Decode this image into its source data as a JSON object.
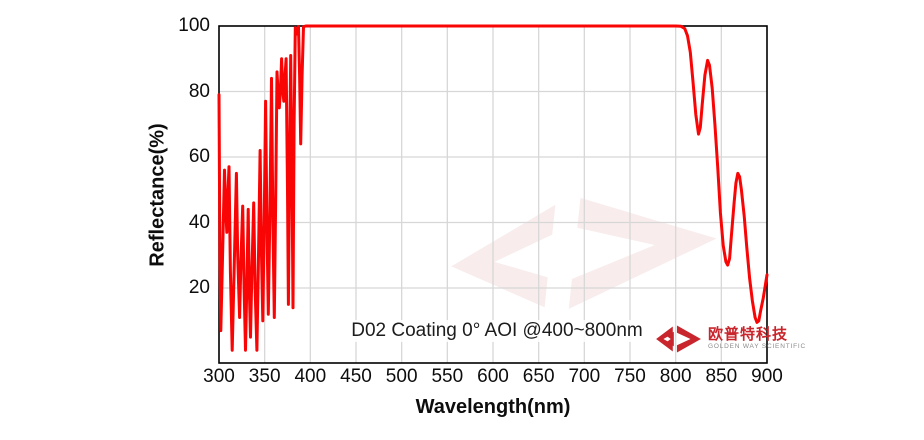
{
  "annotation": {
    "text": "D02 Coating  0°  AOI @400~800nm"
  },
  "logo": {
    "company_cn": "欧普特科技",
    "company_en": "GOLDEN WAY SCIENTIFIC",
    "brand_red": "#c9252c"
  },
  "colors": {
    "curve": "#f90505",
    "grid": "#d7d7d7",
    "border": "#000000",
    "text": "#0d0d0d",
    "watermark": "#f3dddd"
  },
  "chart_data": {
    "type": "line",
    "title": "",
    "xlabel": "Wavelength(nm)",
    "ylabel": "Reflectance(%)",
    "xlim": [
      300,
      900
    ],
    "ylim": [
      -2.9,
      100
    ],
    "xticks": [
      300,
      350,
      400,
      450,
      500,
      550,
      600,
      650,
      700,
      750,
      800,
      850,
      900
    ],
    "yticks": [
      20,
      40,
      60,
      80,
      100
    ],
    "grid": true,
    "legend_position": "none",
    "annotations": [
      "D02 Coating  0°  AOI @400~800nm"
    ],
    "series": [
      {
        "name": "Reflectance",
        "color": "#f90505",
        "points": [
          [
            300,
            79
          ],
          [
            301,
            30
          ],
          [
            302,
            7
          ],
          [
            303.5,
            25
          ],
          [
            306,
            56
          ],
          [
            307,
            47
          ],
          [
            308.5,
            37
          ],
          [
            310,
            50
          ],
          [
            311,
            57
          ],
          [
            312.5,
            25
          ],
          [
            314.5,
            1
          ],
          [
            316.5,
            25
          ],
          [
            319,
            55
          ],
          [
            320.5,
            30
          ],
          [
            322.5,
            11
          ],
          [
            324,
            28
          ],
          [
            326,
            45
          ],
          [
            327.5,
            20
          ],
          [
            329,
            1
          ],
          [
            330.5,
            22
          ],
          [
            332,
            44
          ],
          [
            333.2,
            20
          ],
          [
            334.5,
            5
          ],
          [
            336,
            25
          ],
          [
            338,
            46
          ],
          [
            339.5,
            20
          ],
          [
            341.5,
            1
          ],
          [
            343.2,
            30
          ],
          [
            345,
            62
          ],
          [
            346.5,
            30
          ],
          [
            348,
            10
          ],
          [
            349.5,
            40
          ],
          [
            351,
            77
          ],
          [
            352.5,
            40
          ],
          [
            354,
            12
          ],
          [
            355.8,
            45
          ],
          [
            357.5,
            84
          ],
          [
            359,
            40
          ],
          [
            360.5,
            11
          ],
          [
            362,
            45
          ],
          [
            363.5,
            86
          ],
          [
            365,
            78
          ],
          [
            366,
            75
          ],
          [
            367.2,
            80
          ],
          [
            368.5,
            90
          ],
          [
            370,
            80
          ],
          [
            371,
            77
          ],
          [
            372.2,
            84
          ],
          [
            373.5,
            90
          ],
          [
            375,
            50
          ],
          [
            376,
            15
          ],
          [
            377.2,
            55
          ],
          [
            378.5,
            91
          ],
          [
            380,
            50
          ],
          [
            381,
            14
          ],
          [
            382.2,
            70
          ],
          [
            383.5,
            99.5
          ],
          [
            385,
            97.5
          ],
          [
            387,
            99.8
          ],
          [
            388.2,
            85
          ],
          [
            389.5,
            64
          ],
          [
            391,
            85
          ],
          [
            392.5,
            99.8
          ],
          [
            395,
            100
          ],
          [
            400,
            100
          ],
          [
            450,
            100
          ],
          [
            500,
            100
          ],
          [
            550,
            100
          ],
          [
            600,
            100
          ],
          [
            650,
            100
          ],
          [
            700,
            100
          ],
          [
            750,
            100
          ],
          [
            800,
            100
          ],
          [
            806,
            99.9
          ],
          [
            810,
            99.2
          ],
          [
            813,
            97
          ],
          [
            816,
            92
          ],
          [
            819,
            83
          ],
          [
            822,
            73
          ],
          [
            825,
            67
          ],
          [
            827,
            69
          ],
          [
            829,
            76
          ],
          [
            832,
            85
          ],
          [
            835,
            89.5
          ],
          [
            837,
            88
          ],
          [
            840,
            81
          ],
          [
            843,
            70
          ],
          [
            846,
            57
          ],
          [
            849,
            43
          ],
          [
            852,
            33
          ],
          [
            855,
            28
          ],
          [
            857,
            27
          ],
          [
            859,
            29
          ],
          [
            861,
            36
          ],
          [
            864,
            46
          ],
          [
            866,
            52
          ],
          [
            868,
            55
          ],
          [
            870,
            54
          ],
          [
            872,
            50
          ],
          [
            875,
            42
          ],
          [
            878,
            32
          ],
          [
            881,
            23
          ],
          [
            884,
            16
          ],
          [
            887,
            11
          ],
          [
            889,
            9.5
          ],
          [
            891,
            10
          ],
          [
            893,
            13
          ],
          [
            896,
            17
          ],
          [
            900,
            24
          ]
        ]
      }
    ]
  }
}
